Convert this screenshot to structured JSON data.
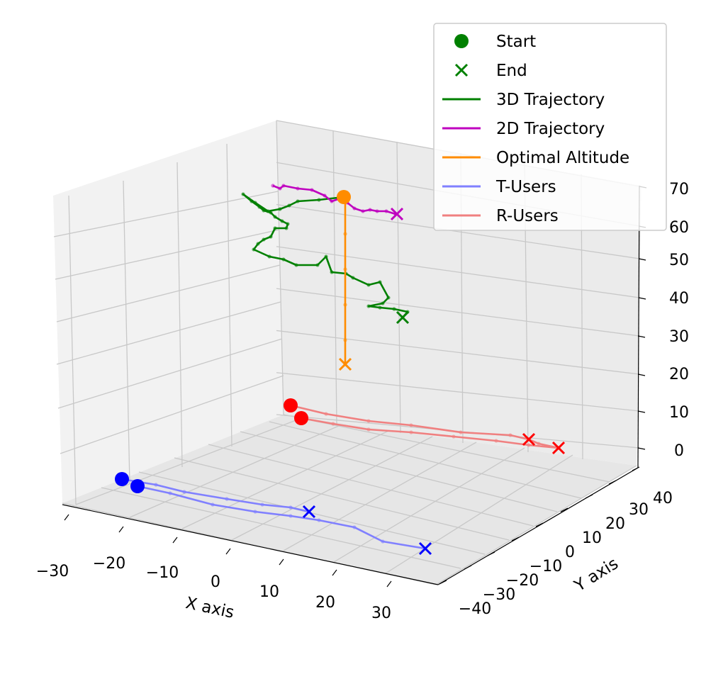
{
  "chart_data": {
    "type": "line3d",
    "x_axis": {
      "label": "X axis",
      "ticks": [
        "−30",
        "−20",
        "−10",
        "0",
        "10",
        "20",
        "30"
      ]
    },
    "y_axis": {
      "label": "Y axis",
      "ticks": [
        "−40",
        "−30",
        "−20",
        "−10",
        "0",
        "10",
        "20",
        "30",
        "40"
      ]
    },
    "z_axis": {
      "label": "",
      "ticks": [
        "0",
        "10",
        "20",
        "30",
        "40",
        "50",
        "60",
        "70"
      ]
    },
    "grid": true,
    "legend_position": "top-right",
    "legend": [
      {
        "label": "Start",
        "kind": "dot",
        "color": "#008000"
      },
      {
        "label": "End",
        "kind": "x",
        "color": "#008000"
      },
      {
        "label": "3D Trajectory",
        "kind": "line",
        "color": "#008000"
      },
      {
        "label": "2D Trajectory",
        "kind": "line",
        "color": "#bf00bf"
      },
      {
        "label": "Optimal Altitude",
        "kind": "line",
        "color": "#ff8c00"
      },
      {
        "label": "T-Users",
        "kind": "line",
        "color": "#8080ff"
      },
      {
        "label": "R-Users",
        "kind": "line",
        "color": "#f08080"
      }
    ],
    "series": [
      {
        "name": "3D Trajectory",
        "color": "#008000",
        "points": [
          [
            485,
            278
          ],
          [
            450,
            282
          ],
          [
            420,
            284
          ],
          [
            408,
            290
          ],
          [
            395,
            295
          ],
          [
            378,
            298
          ],
          [
            360,
            286
          ],
          [
            343,
            274
          ],
          [
            355,
            284
          ],
          [
            366,
            292
          ],
          [
            372,
            297
          ],
          [
            382,
            300
          ],
          [
            388,
            306
          ],
          [
            398,
            312
          ],
          [
            406,
            316
          ],
          [
            404,
            322
          ],
          [
            388,
            322
          ],
          [
            382,
            334
          ],
          [
            372,
            338
          ],
          [
            364,
            344
          ],
          [
            358,
            352
          ],
          [
            380,
            362
          ],
          [
            400,
            366
          ],
          [
            418,
            374
          ],
          [
            448,
            374
          ],
          [
            460,
            362
          ],
          [
            468,
            384
          ],
          [
            488,
            386
          ],
          [
            498,
            392
          ],
          [
            520,
            402
          ],
          [
            536,
            398
          ],
          [
            548,
            420
          ],
          [
            540,
            428
          ],
          [
            520,
            432
          ],
          [
            536,
            434
          ],
          [
            556,
            436
          ],
          [
            575,
            440
          ],
          [
            568,
            448
          ]
        ]
      },
      {
        "name": "2D Trajectory",
        "color": "#bf00bf",
        "points": [
          [
            385,
            262
          ],
          [
            395,
            266
          ],
          [
            400,
            262
          ],
          [
            420,
            266
          ],
          [
            440,
            268
          ],
          [
            458,
            276
          ],
          [
            468,
            284
          ],
          [
            480,
            280
          ],
          [
            490,
            286
          ],
          [
            500,
            294
          ],
          [
            512,
            298
          ],
          [
            522,
            296
          ],
          [
            532,
            298
          ],
          [
            545,
            298
          ],
          [
            558,
            302
          ]
        ]
      },
      {
        "name": "Optimal Altitude",
        "color": "#ff8c00",
        "points": [
          [
            487,
            278
          ],
          [
            487,
            330
          ],
          [
            487,
            380
          ],
          [
            487,
            430
          ],
          [
            487,
            480
          ],
          [
            487,
            514
          ]
        ]
      },
      {
        "name": "R-Users",
        "color": "#f08080",
        "points": [
          [
            410,
            572
          ],
          [
            460,
            584
          ],
          [
            520,
            594
          ],
          [
            580,
            600
          ],
          [
            650,
            610
          ],
          [
            720,
            614
          ],
          [
            746,
            620
          ],
          [
            760,
            626
          ],
          [
            788,
            632
          ]
        ]
      },
      {
        "name": "R-Users",
        "color": "#f08080",
        "points": [
          [
            425,
            590
          ],
          [
            470,
            598
          ],
          [
            520,
            606
          ],
          [
            580,
            610
          ],
          [
            640,
            616
          ],
          [
            700,
            622
          ],
          [
            746,
            628
          ],
          [
            788,
            632
          ]
        ]
      },
      {
        "name": "T-Users",
        "color": "#8080ff",
        "points": [
          [
            172,
            676
          ],
          [
            220,
            684
          ],
          [
            260,
            694
          ],
          [
            320,
            704
          ],
          [
            370,
            712
          ],
          [
            410,
            716
          ],
          [
            436,
            722
          ]
        ]
      },
      {
        "name": "T-Users",
        "color": "#8080ff",
        "points": [
          [
            194,
            686
          ],
          [
            240,
            696
          ],
          [
            300,
            712
          ],
          [
            360,
            722
          ],
          [
            410,
            728
          ],
          [
            450,
            734
          ],
          [
            500,
            744
          ],
          [
            540,
            764
          ],
          [
            600,
            774
          ]
        ]
      }
    ],
    "markers": [
      {
        "series": "3D Trajectory",
        "kind": "start",
        "point": [
          485,
          278
        ],
        "color": "#ff8c00"
      },
      {
        "series": "3D Trajectory",
        "kind": "end",
        "point": [
          568,
          448
        ],
        "color": "#008000"
      },
      {
        "series": "2D Trajectory",
        "kind": "end",
        "point": [
          560,
          302
        ],
        "color": "#bf00bf"
      },
      {
        "series": "Optimal Altitude",
        "kind": "end",
        "point": [
          487,
          514
        ],
        "color": "#ff8c00"
      },
      {
        "series": "R-Users",
        "kind": "start",
        "point": [
          410,
          572
        ],
        "color": "#ff0000"
      },
      {
        "series": "R-Users",
        "kind": "start",
        "point": [
          425,
          590
        ],
        "color": "#ff0000"
      },
      {
        "series": "R-Users",
        "kind": "end",
        "point": [
          746,
          620
        ],
        "color": "#ff0000"
      },
      {
        "series": "R-Users",
        "kind": "end",
        "point": [
          788,
          632
        ],
        "color": "#ff0000"
      },
      {
        "series": "T-Users",
        "kind": "start",
        "point": [
          172,
          676
        ],
        "color": "#0000ff"
      },
      {
        "series": "T-Users",
        "kind": "start",
        "point": [
          194,
          686
        ],
        "color": "#0000ff"
      },
      {
        "series": "T-Users",
        "kind": "end",
        "point": [
          436,
          722
        ],
        "color": "#0000ff"
      },
      {
        "series": "T-Users",
        "kind": "end",
        "point": [
          600,
          774
        ],
        "color": "#0000ff"
      }
    ]
  }
}
